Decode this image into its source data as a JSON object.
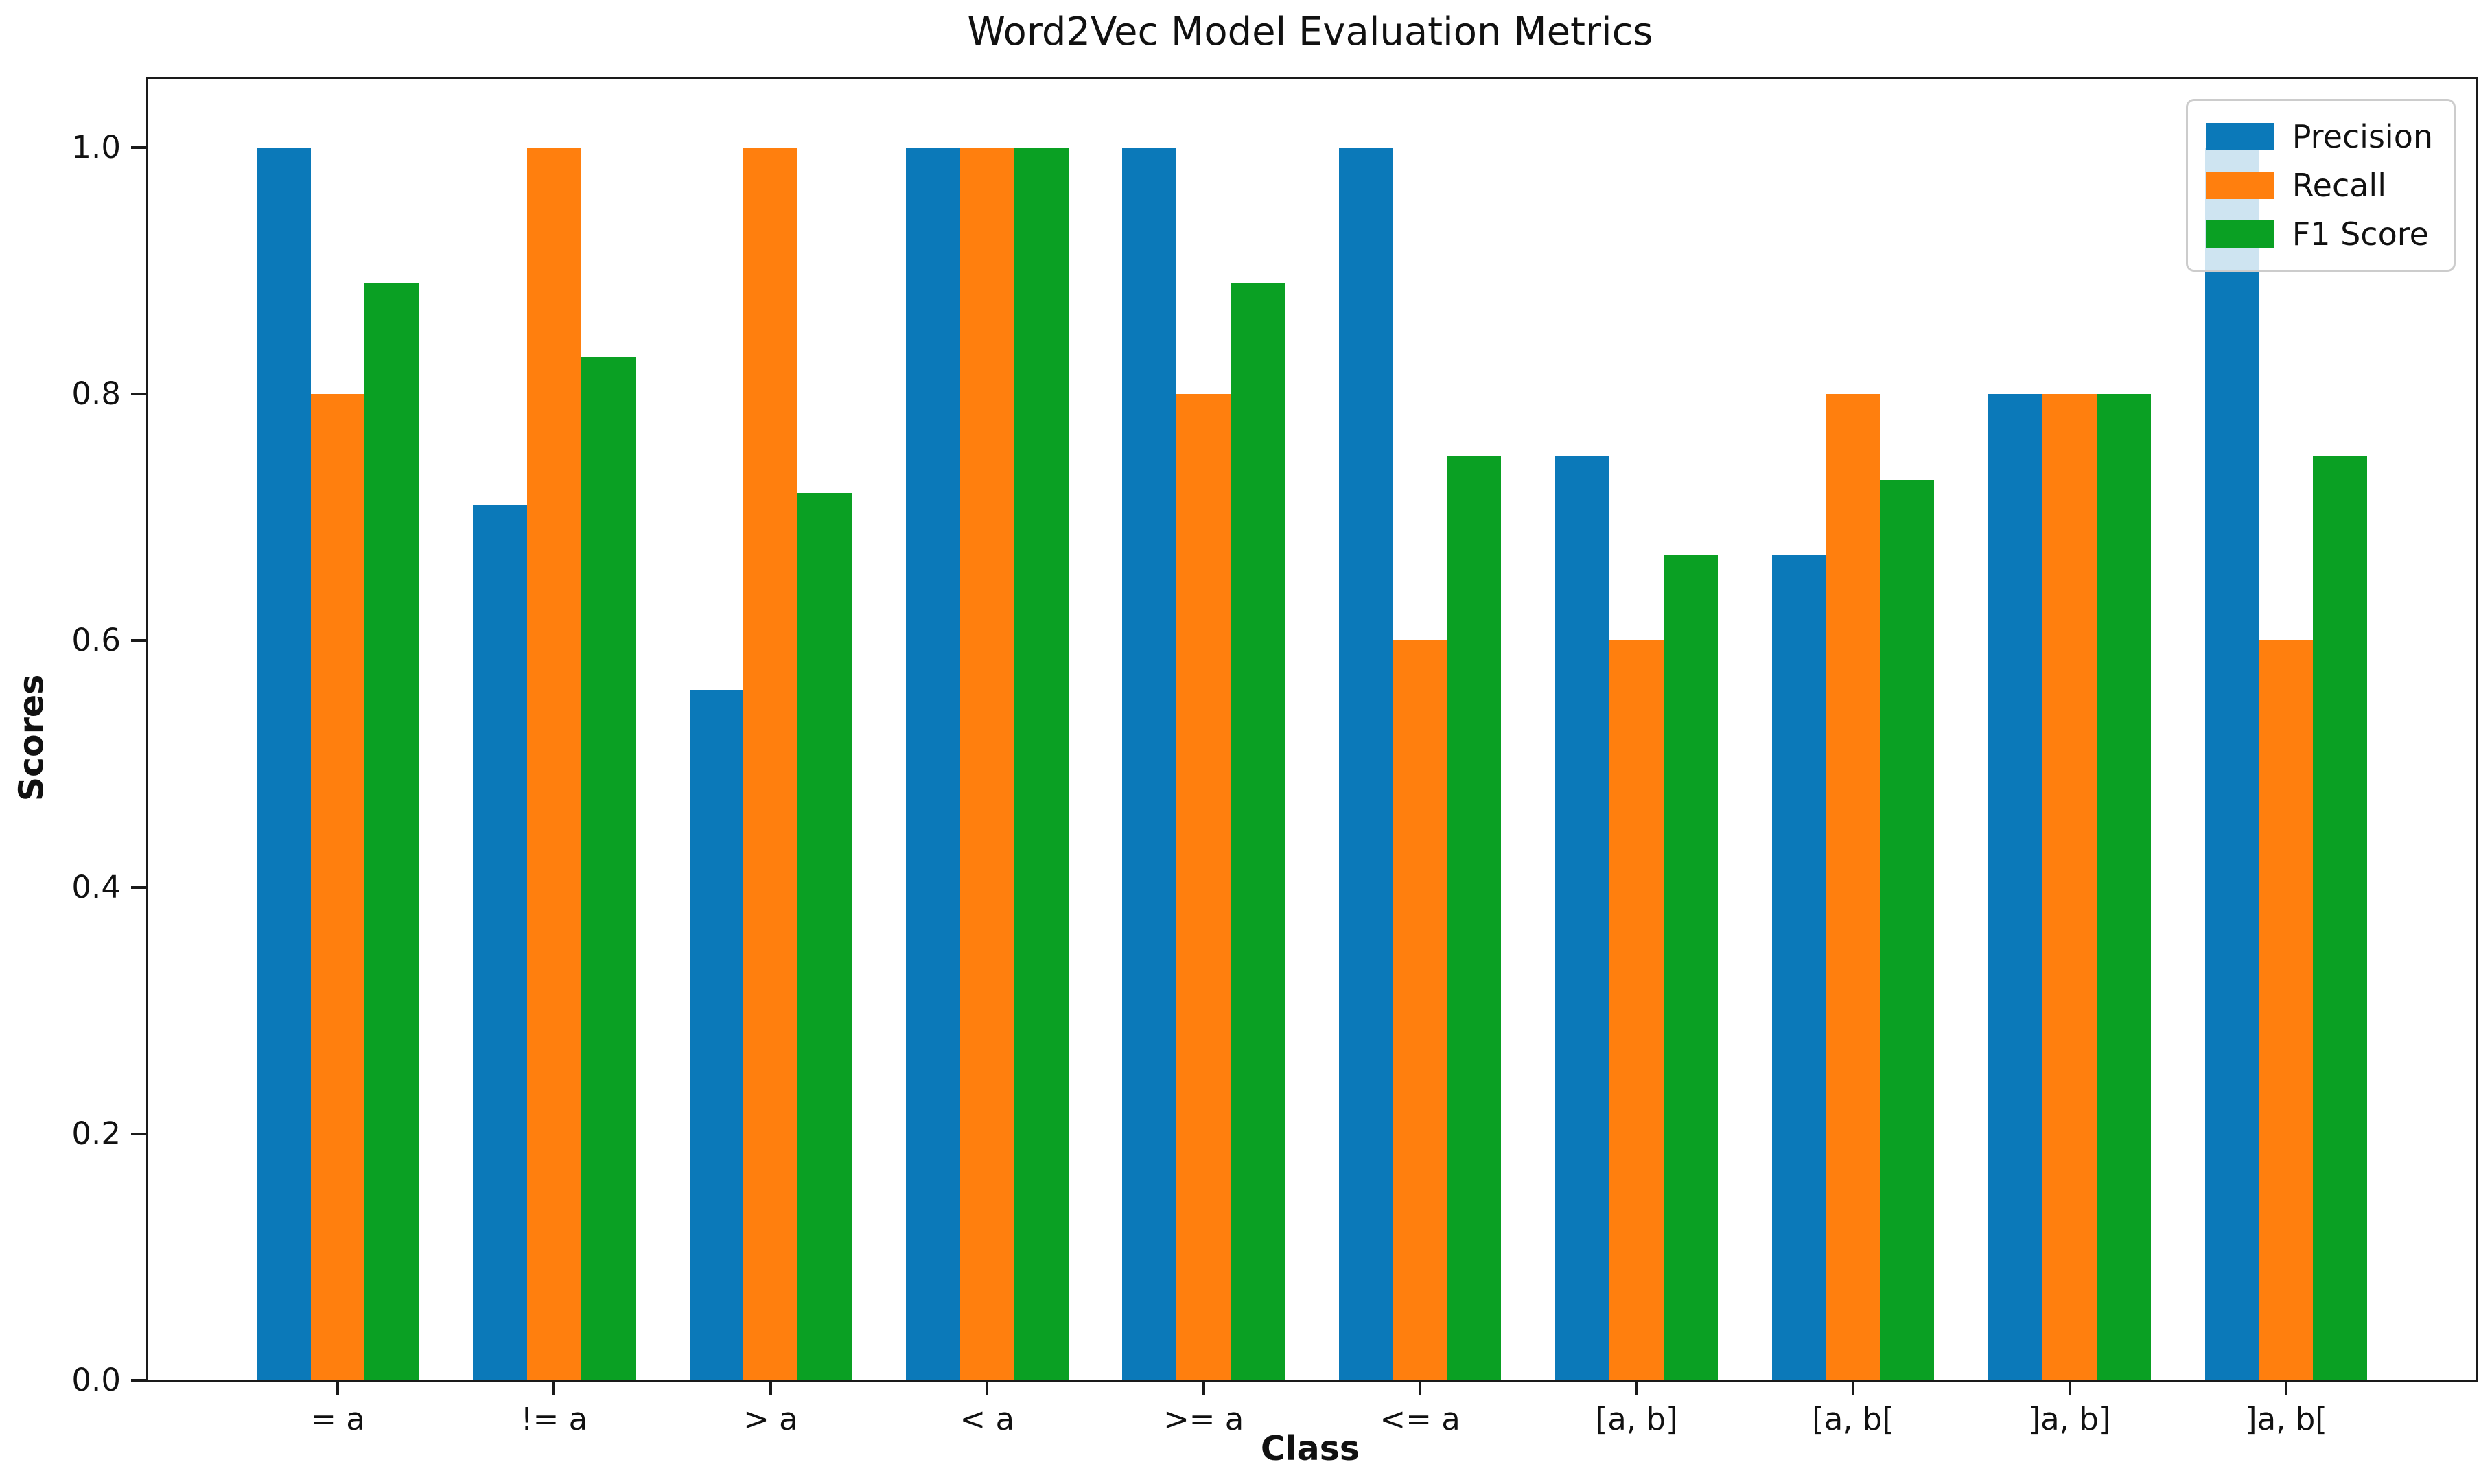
{
  "chart_data": {
    "type": "bar",
    "title": "Word2Vec Model Evaluation Metrics",
    "xlabel": "Class",
    "ylabel": "Scores",
    "categories": [
      "= a",
      "!= a",
      "> a",
      "< a",
      ">= a",
      "<= a",
      "[a, b]",
      "[a, b[",
      "]a, b]",
      "]a, b["
    ],
    "series": [
      {
        "name": "Precision",
        "color": "#0b79b9",
        "values": [
          1.0,
          0.71,
          0.56,
          1.0,
          1.0,
          1.0,
          0.75,
          0.67,
          0.8,
          1.0
        ]
      },
      {
        "name": "Recall",
        "color": "#ff7f0e",
        "values": [
          0.8,
          1.0,
          1.0,
          1.0,
          0.8,
          0.6,
          0.6,
          0.8,
          0.8,
          0.6
        ]
      },
      {
        "name": "F1 Score",
        "color": "#0aa023",
        "values": [
          0.89,
          0.83,
          0.72,
          1.0,
          0.89,
          0.75,
          0.67,
          0.73,
          0.8,
          0.75
        ]
      }
    ],
    "yticks": [
      0.0,
      0.2,
      0.4,
      0.6,
      0.8,
      1.0
    ],
    "ytick_labels": [
      "0.0",
      "0.2",
      "0.4",
      "0.6",
      "0.8",
      "1.0"
    ],
    "ylim": [
      0,
      1.056
    ],
    "grid": false,
    "legend_position": "upper right",
    "bar_width_fraction": 0.25,
    "background": "#ffffff",
    "spine_color": "#1a1a1a",
    "legend_border_color": "#cccccc"
  }
}
